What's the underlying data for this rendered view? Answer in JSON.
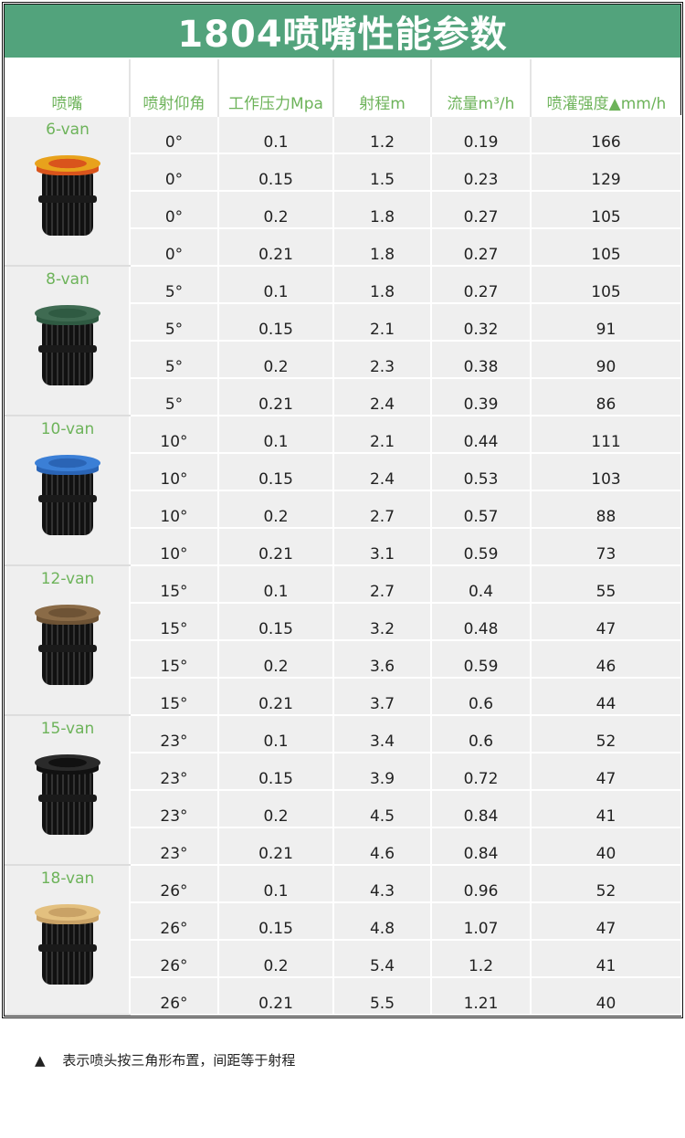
{
  "title": "1804喷嘴性能参数",
  "headers": [
    "喷嘴",
    "喷射仰角",
    "工作压力Mpa",
    "射程m",
    "流量m³/h",
    "喷灌强度▲mm/h"
  ],
  "groups": [
    {
      "name": "6-van",
      "color": "#e8a21c",
      "center": "#d9541c",
      "rows": [
        [
          "0°",
          "0.1",
          "1.2",
          "0.19",
          "166"
        ],
        [
          "0°",
          "0.15",
          "1.5",
          "0.23",
          "129"
        ],
        [
          "0°",
          "0.2",
          "1.8",
          "0.27",
          "105"
        ],
        [
          "0°",
          "0.21",
          "1.8",
          "0.27",
          "105"
        ]
      ]
    },
    {
      "name": "8-van",
      "color": "#3f6b52",
      "center": "#2f5a42",
      "rows": [
        [
          "5°",
          "0.1",
          "1.8",
          "0.27",
          "105"
        ],
        [
          "5°",
          "0.15",
          "2.1",
          "0.32",
          "91"
        ],
        [
          "5°",
          "0.2",
          "2.3",
          "0.38",
          "90"
        ],
        [
          "5°",
          "0.21",
          "2.4",
          "0.39",
          "86"
        ]
      ]
    },
    {
      "name": "10-van",
      "color": "#3b7fd6",
      "center": "#2a64b5",
      "rows": [
        [
          "10°",
          "0.1",
          "2.1",
          "0.44",
          "111"
        ],
        [
          "10°",
          "0.15",
          "2.4",
          "0.53",
          "103"
        ],
        [
          "10°",
          "0.2",
          "2.7",
          "0.57",
          "88"
        ],
        [
          "10°",
          "0.21",
          "3.1",
          "0.59",
          "73"
        ]
      ]
    },
    {
      "name": "12-van",
      "color": "#8a6b47",
      "center": "#6e5335",
      "rows": [
        [
          "15°",
          "0.1",
          "2.7",
          "0.4",
          "55"
        ],
        [
          "15°",
          "0.15",
          "3.2",
          "0.48",
          "47"
        ],
        [
          "15°",
          "0.2",
          "3.6",
          "0.59",
          "46"
        ],
        [
          "15°",
          "0.21",
          "3.7",
          "0.6",
          "44"
        ]
      ]
    },
    {
      "name": "15-van",
      "color": "#2a2a2a",
      "center": "#111111",
      "rows": [
        [
          "23°",
          "0.1",
          "3.4",
          "0.6",
          "52"
        ],
        [
          "23°",
          "0.15",
          "3.9",
          "0.72",
          "47"
        ],
        [
          "23°",
          "0.2",
          "4.5",
          "0.84",
          "41"
        ],
        [
          "23°",
          "0.21",
          "4.6",
          "0.84",
          "40"
        ]
      ]
    },
    {
      "name": "18-van",
      "color": "#e3c07f",
      "center": "#c9a266",
      "rows": [
        [
          "26°",
          "0.1",
          "4.3",
          "0.96",
          "52"
        ],
        [
          "26°",
          "0.15",
          "4.8",
          "1.07",
          "47"
        ],
        [
          "26°",
          "0.2",
          "5.4",
          "1.2",
          "41"
        ],
        [
          "26°",
          "0.21",
          "5.5",
          "1.21",
          "40"
        ]
      ]
    }
  ],
  "footnote": {
    "symbol": "▲",
    "text": "表示喷头按三角形布置，间距等于射程"
  }
}
